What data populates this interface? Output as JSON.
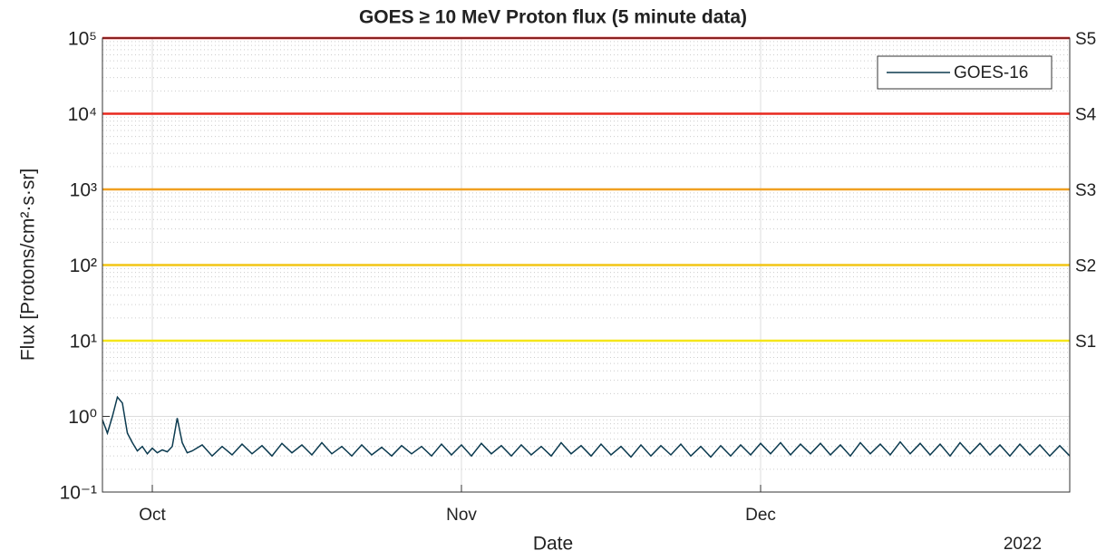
{
  "chart_data": {
    "type": "line",
    "title": "GOES  ≥ 10 MeV Proton flux (5 minute data)",
    "x_label": "Date",
    "y_label": "Flux [Protons/cm²·s·sr]",
    "x_annotation": "2022",
    "log_y": true,
    "grid": true,
    "legend_position": "upper right",
    "xlim": [
      -5,
      92
    ],
    "ylim": [
      0.1,
      100000
    ],
    "xticks": [
      {
        "value": 0,
        "label": "Oct"
      },
      {
        "value": 31,
        "label": "Nov"
      },
      {
        "value": 61,
        "label": "Dec"
      }
    ],
    "yticks": [
      {
        "value": 0.1,
        "label": "10⁻¹"
      },
      {
        "value": 1,
        "label": "10⁰"
      },
      {
        "value": 10,
        "label": "10¹"
      },
      {
        "value": 100,
        "label": "10²"
      },
      {
        "value": 1000,
        "label": "10³"
      },
      {
        "value": 10000,
        "label": "10⁴"
      },
      {
        "value": 100000,
        "label": "10⁵"
      }
    ],
    "thresholds": [
      {
        "label": "S1",
        "value": 10,
        "color": "#f5e61a"
      },
      {
        "label": "S2",
        "value": 100,
        "color": "#f2c515"
      },
      {
        "label": "S3",
        "value": 1000,
        "color": "#f0a020"
      },
      {
        "label": "S4",
        "value": 10000,
        "color": "#e8281e"
      },
      {
        "label": "S5",
        "value": 100000,
        "color": "#e01010"
      }
    ],
    "series": [
      {
        "name": "GOES-16",
        "color": "#0b3a4f",
        "x": [
          -5,
          -4.5,
          -4,
          -3.5,
          -3,
          -2.5,
          -2,
          -1.5,
          -1,
          -0.5,
          0,
          0.5,
          1,
          1.5,
          2,
          2.5,
          3,
          3.5,
          4,
          5,
          6,
          7,
          8,
          9,
          10,
          11,
          12,
          13,
          14,
          15,
          16,
          17,
          18,
          19,
          20,
          21,
          22,
          23,
          24,
          25,
          26,
          27,
          28,
          29,
          30,
          31,
          32,
          33,
          34,
          35,
          36,
          37,
          38,
          39,
          40,
          41,
          42,
          43,
          44,
          45,
          46,
          47,
          48,
          49,
          50,
          51,
          52,
          53,
          54,
          55,
          56,
          57,
          58,
          59,
          60,
          61,
          62,
          63,
          64,
          65,
          66,
          67,
          68,
          69,
          70,
          71,
          72,
          73,
          74,
          75,
          76,
          77,
          78,
          79,
          80,
          81,
          82,
          83,
          84,
          85,
          86,
          87,
          88,
          89,
          90,
          91,
          92
        ],
        "values": [
          0.9,
          0.6,
          1.0,
          1.8,
          1.5,
          0.6,
          0.45,
          0.35,
          0.4,
          0.32,
          0.38,
          0.33,
          0.36,
          0.34,
          0.4,
          0.95,
          0.45,
          0.33,
          0.35,
          0.42,
          0.3,
          0.4,
          0.31,
          0.43,
          0.32,
          0.41,
          0.3,
          0.44,
          0.33,
          0.42,
          0.31,
          0.45,
          0.32,
          0.4,
          0.3,
          0.42,
          0.31,
          0.39,
          0.3,
          0.41,
          0.32,
          0.4,
          0.3,
          0.43,
          0.31,
          0.42,
          0.3,
          0.44,
          0.32,
          0.41,
          0.3,
          0.42,
          0.31,
          0.4,
          0.3,
          0.45,
          0.32,
          0.41,
          0.3,
          0.43,
          0.31,
          0.4,
          0.29,
          0.42,
          0.3,
          0.41,
          0.31,
          0.43,
          0.3,
          0.4,
          0.29,
          0.41,
          0.3,
          0.42,
          0.31,
          0.44,
          0.32,
          0.45,
          0.31,
          0.43,
          0.32,
          0.44,
          0.31,
          0.42,
          0.3,
          0.45,
          0.32,
          0.43,
          0.31,
          0.46,
          0.32,
          0.44,
          0.31,
          0.43,
          0.3,
          0.45,
          0.32,
          0.44,
          0.31,
          0.42,
          0.3,
          0.43,
          0.31,
          0.42,
          0.3,
          0.41,
          0.3
        ]
      }
    ]
  }
}
